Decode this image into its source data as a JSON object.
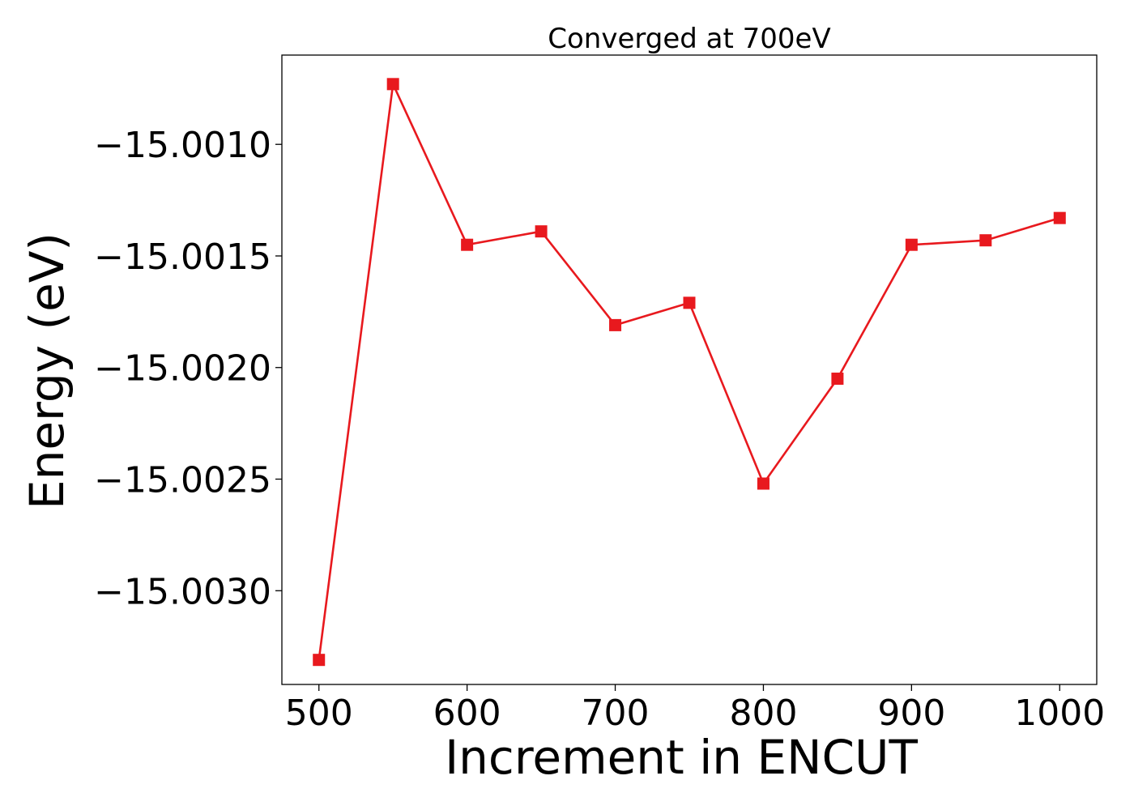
{
  "chart_data": {
    "type": "line",
    "title": "Converged at 700eV",
    "xlabel": "Increment in ENCUT",
    "ylabel": "Energy (eV)",
    "xlim": [
      475,
      1025
    ],
    "ylim": [
      -15.00342,
      -15.0006
    ],
    "xticks": [
      500,
      600,
      700,
      800,
      900,
      1000
    ],
    "xtick_labels": [
      "500",
      "600",
      "700",
      "800",
      "900",
      "1000"
    ],
    "yticks": [
      -15.001,
      -15.0015,
      -15.002,
      -15.0025,
      -15.003
    ],
    "ytick_labels": [
      "−15.0010",
      "−15.0015",
      "−15.0020",
      "−15.0025",
      "−15.0030"
    ],
    "grid": false,
    "series": [
      {
        "color": "#e8191e",
        "marker": "square",
        "x": [
          500,
          550,
          600,
          650,
          700,
          750,
          800,
          850,
          900,
          950,
          1000
        ],
        "y": [
          -15.00331,
          -15.00073,
          -15.00145,
          -15.00139,
          -15.00181,
          -15.00171,
          -15.00252,
          -15.00205,
          -15.00145,
          -15.00143,
          -15.00133
        ]
      }
    ]
  }
}
